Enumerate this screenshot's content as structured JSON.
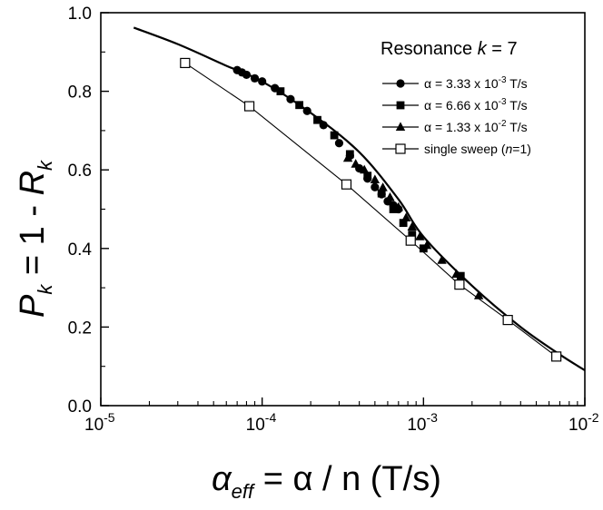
{
  "chart_data": {
    "type": "scatter",
    "x_scale": "log",
    "xlim": [
      1e-05,
      0.01
    ],
    "ylim": [
      0.0,
      1.0
    ],
    "grid": false,
    "legend_placement": "top-right",
    "legend_title": {
      "pre": "Resonance ",
      "var": "k",
      "post": " = 7"
    },
    "x_ticks": [
      {
        "value": 1e-05,
        "base": "10",
        "exp": "-5"
      },
      {
        "value": 0.0001,
        "base": "10",
        "exp": "-4"
      },
      {
        "value": 0.001,
        "base": "10",
        "exp": "-3"
      },
      {
        "value": 0.01,
        "base": "10",
        "exp": "-2"
      }
    ],
    "y_ticks": [
      {
        "value": 0.0,
        "label": "0.0"
      },
      {
        "value": 0.2,
        "label": "0.2"
      },
      {
        "value": 0.4,
        "label": "0.4"
      },
      {
        "value": 0.6,
        "label": "0.6"
      },
      {
        "value": 0.8,
        "label": "0.8"
      },
      {
        "value": 1.0,
        "label": "1.0"
      }
    ],
    "xlabel": {
      "main": "α",
      "sub": "eff",
      "rest": " = α / n  (T/s)"
    },
    "ylabel": {
      "p": "P",
      "psub": "k",
      "mid": " = 1 - ",
      "r": "R",
      "rsub": "k"
    },
    "curve": {
      "x": [
        1.6e-05,
        3e-05,
        6e-05,
        0.0001,
        0.0002,
        0.0004,
        0.0007,
        0.001,
        0.002,
        0.004,
        0.007,
        0.01
      ],
      "y": [
        0.962,
        0.92,
        0.865,
        0.825,
        0.745,
        0.645,
        0.525,
        0.43,
        0.305,
        0.2,
        0.13,
        0.09
      ]
    },
    "series": [
      {
        "name": {
          "pre": "α = 3.33 x 10",
          "exp": "-3",
          "post": " T/s"
        },
        "marker": "circle",
        "x": [
          7e-05,
          7.5e-05,
          8e-05,
          9e-05,
          0.0001,
          0.00012,
          0.00015,
          0.00019,
          0.00024,
          0.0003,
          0.00035,
          0.0004,
          0.00045,
          0.0005,
          0.00055,
          0.0006,
          0.00065,
          0.0007
        ],
        "y": [
          0.854,
          0.848,
          0.842,
          0.833,
          0.825,
          0.808,
          0.78,
          0.75,
          0.714,
          0.668,
          0.636,
          0.604,
          0.578,
          0.556,
          0.538,
          0.52,
          0.51,
          0.5
        ]
      },
      {
        "name": {
          "pre": "α = 6.66 x 10",
          "exp": "-3",
          "post": " T/s"
        },
        "marker": "square",
        "x": [
          0.00013,
          0.00017,
          0.00022,
          0.00028,
          0.00035,
          0.00045,
          0.00055,
          0.00065,
          0.00075,
          0.00085,
          0.001,
          0.0017
        ],
        "y": [
          0.8,
          0.765,
          0.727,
          0.688,
          0.64,
          0.585,
          0.54,
          0.5,
          0.465,
          0.435,
          0.4,
          0.33
        ]
      },
      {
        "name": {
          "pre": "α = 1.33 x 10",
          "exp": "-2",
          "post": " T/s"
        },
        "marker": "triangle",
        "x": [
          0.00034,
          0.00038,
          0.00043,
          0.0005,
          0.00056,
          0.00062,
          0.0007,
          0.00078,
          0.00085,
          0.00095,
          0.00105,
          0.0013,
          0.0016,
          0.0022
        ],
        "y": [
          0.63,
          0.615,
          0.6,
          0.575,
          0.555,
          0.53,
          0.505,
          0.478,
          0.455,
          0.43,
          0.408,
          0.37,
          0.335,
          0.28
        ]
      },
      {
        "name": {
          "pre": "single sweep (",
          "var": "n",
          "post": "=1)"
        },
        "marker": "open-square",
        "connected": true,
        "x": [
          3.33e-05,
          8.33e-05,
          0.000333,
          0.000833,
          0.00167,
          0.00333,
          0.00666
        ],
        "y": [
          0.872,
          0.762,
          0.563,
          0.42,
          0.308,
          0.218,
          0.125
        ]
      }
    ]
  }
}
